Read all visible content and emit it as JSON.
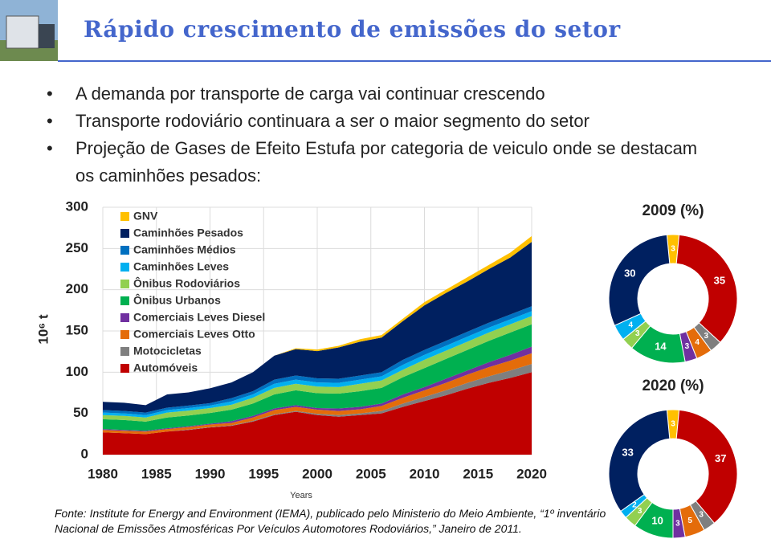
{
  "slide": {
    "title": "Rápido crescimento de emissões do setor",
    "bullets": [
      "A demanda por transporte de carga vai continuar crescendo",
      "Transporte rodoviário continuara a ser o maior segmento do setor",
      "Projeção de Gases de Efeito Estufa por categoria de veiculo onde se destacam os caminhões pesados:"
    ],
    "source": "Fonte: Institute for Energy and Environment (IEMA), publicado pelo Ministerio do Meio Ambiente, “1º inventário Nacional de Emissões Atmosféricas Por Veículos Automotores Rodoviários,” Janeiro de 2011."
  },
  "chart_data": [
    {
      "type": "stacked_area",
      "x_label": "Years",
      "y_label": "10⁶ t",
      "x": [
        1980,
        1982,
        1984,
        1986,
        1988,
        1990,
        1992,
        1994,
        1996,
        1998,
        2000,
        2002,
        2004,
        2006,
        2008,
        2010,
        2012,
        2014,
        2016,
        2018,
        2020
      ],
      "xlim": [
        1980,
        2020
      ],
      "xticks": [
        1980,
        1985,
        1990,
        1995,
        2000,
        2005,
        2010,
        2015,
        2020
      ],
      "ylim": [
        0,
        300
      ],
      "yticks": [
        0,
        50,
        100,
        150,
        200,
        250,
        300
      ],
      "grid": true,
      "legend": "top-left",
      "series": [
        {
          "name": "GNV",
          "color": "#ffc000",
          "values": [
            0,
            0,
            0,
            0,
            0,
            0,
            0,
            0,
            0,
            1,
            2,
            2,
            3,
            3,
            3,
            4,
            4,
            5,
            5,
            6,
            7
          ]
        },
        {
          "name": "Caminhões Pesados",
          "color": "#002060",
          "values": [
            10,
            10,
            9,
            16,
            16,
            18,
            19,
            23,
            29,
            32,
            33,
            38,
            41,
            42,
            47,
            54,
            58,
            61,
            65,
            69,
            78
          ]
        },
        {
          "name": "Caminhões Médios",
          "color": "#0070c0",
          "values": [
            3,
            3,
            3,
            3,
            3,
            3,
            4,
            4,
            5,
            5,
            5,
            5,
            5,
            5,
            6,
            6,
            6,
            6,
            6,
            6,
            6
          ]
        },
        {
          "name": "Caminhões Leves",
          "color": "#00b0f0",
          "values": [
            3,
            3,
            3,
            3,
            3,
            3,
            4,
            4,
            5,
            5,
            5,
            5,
            5,
            5,
            6,
            6,
            6,
            6,
            6,
            6,
            6
          ]
        },
        {
          "name": "Ônibus Rodoviários",
          "color": "#92d050",
          "values": [
            5,
            5,
            5,
            6,
            6,
            6,
            6,
            7,
            8,
            8,
            8,
            8,
            9,
            9,
            9,
            10,
            10,
            10,
            10,
            10,
            10
          ]
        },
        {
          "name": "Ônibus Urbanos",
          "color": "#00b050",
          "values": [
            12,
            12,
            11,
            13,
            13,
            13,
            14,
            15,
            17,
            18,
            18,
            18,
            19,
            19,
            21,
            23,
            24,
            25,
            26,
            27,
            27
          ]
        },
        {
          "name": "Comerciais Leves Diesel",
          "color": "#7030a0",
          "values": [
            1,
            1,
            1,
            1,
            1,
            1,
            2,
            2,
            2,
            2,
            2,
            3,
            3,
            3,
            4,
            4,
            5,
            5,
            6,
            7,
            8
          ]
        },
        {
          "name": "Comerciais Leves Otto",
          "color": "#e46c0a",
          "values": [
            3,
            3,
            3,
            3,
            3,
            3,
            3,
            4,
            5,
            5,
            5,
            5,
            5,
            6,
            7,
            8,
            9,
            10,
            11,
            12,
            13
          ]
        },
        {
          "name": "Motocicletas",
          "color": "#7f7f7f",
          "values": [
            0,
            0,
            0,
            0,
            0.5,
            0.5,
            0.5,
            1,
            1,
            1,
            1.5,
            2,
            2,
            3,
            4,
            5,
            6,
            7,
            8,
            9,
            10
          ]
        },
        {
          "name": "Automóveis",
          "color": "#c00000",
          "values": [
            27,
            26,
            25,
            28,
            30,
            33,
            35,
            40,
            48,
            52,
            48,
            46,
            48,
            50,
            58,
            65,
            72,
            80,
            87,
            93,
            100
          ]
        }
      ]
    },
    {
      "type": "donut",
      "title": "2009 (%)",
      "values": [
        3,
        35,
        3,
        4,
        3,
        14,
        3,
        4,
        30
      ],
      "colors": [
        "#ffc000",
        "#c00000",
        "#7f7f7f",
        "#e46c0a",
        "#7030a0",
        "#00b050",
        "#92d050",
        "#00b0f0",
        "#002060"
      ]
    },
    {
      "type": "donut",
      "title": "2020 (%)",
      "values": [
        3,
        37,
        3,
        5,
        3,
        10,
        3,
        2,
        33
      ],
      "colors": [
        "#ffc000",
        "#c00000",
        "#7f7f7f",
        "#e46c0a",
        "#7030a0",
        "#00b050",
        "#92d050",
        "#00b0f0",
        "#002060"
      ]
    }
  ]
}
